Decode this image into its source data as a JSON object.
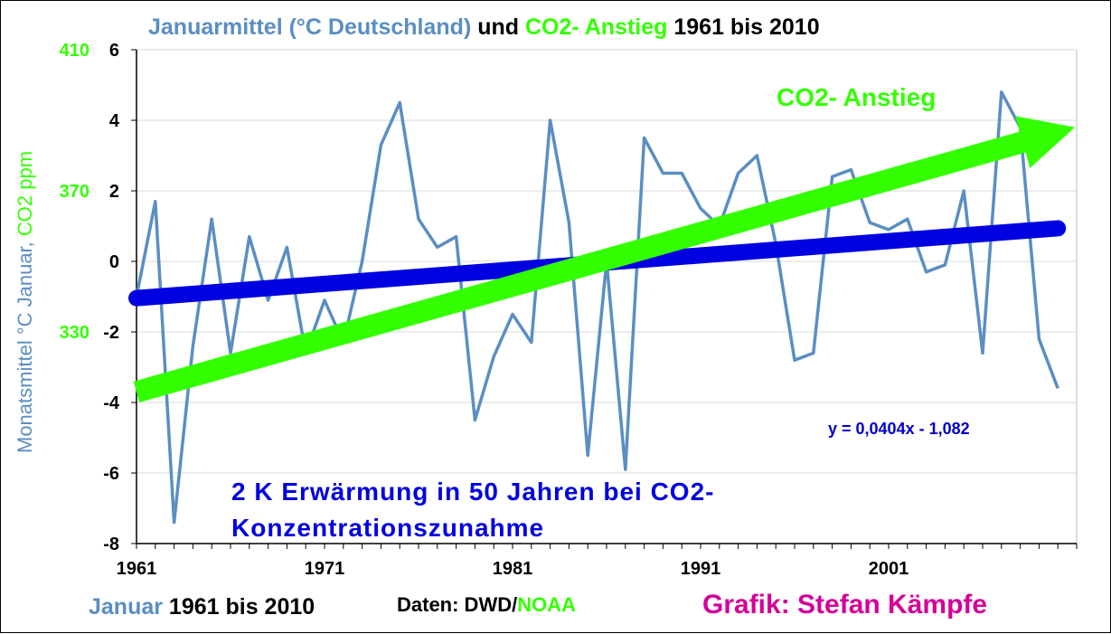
{
  "title": {
    "part1": "Januarmittel (°C Deutschland)",
    "part2": " und ",
    "part3": "CO2- Anstieg",
    "part4": " 1961 bis 2010"
  },
  "ylabel": {
    "part1": "Monatsmittel  °C Januar, ",
    "part2": "CO2 ppm"
  },
  "footer": {
    "left_a": "Januar",
    "left_b": " 1961 bis 2010",
    "data_a": "Daten: DWD/",
    "data_b": "NOAA",
    "credit": "Grafik: Stefan Kämpfe"
  },
  "annotations": {
    "co2_label": "CO2- Anstieg",
    "equation": "y = 0,0404x - 1,082",
    "text_line1": "2 K Erwärmung in 50 Jahren bei CO2-",
    "text_line2": "Konzentrationszunahme"
  },
  "colors": {
    "temperature": "#5b8ec2",
    "trend": "#0000e0",
    "co2": "#33ff00",
    "title_blue": "#5b8ec2",
    "credit": "#d4009a"
  },
  "chart_data": {
    "type": "line",
    "x_ticks": [
      "1961",
      "1971",
      "1981",
      "1991",
      "2001"
    ],
    "y_ticks": [
      "6",
      "4",
      "2",
      "0",
      "-2",
      "-4",
      "-6",
      "-8"
    ],
    "co2_ticks": [
      "410",
      "370",
      "330"
    ],
    "ylim": [
      -8,
      6
    ],
    "xlim": [
      1961,
      2011
    ],
    "grid": true,
    "series": [
      {
        "name": "Januar",
        "x": [
          1961,
          1962,
          1963,
          1964,
          1965,
          1966,
          1967,
          1968,
          1969,
          1970,
          1971,
          1972,
          1973,
          1974,
          1975,
          1976,
          1977,
          1978,
          1979,
          1980,
          1981,
          1982,
          1983,
          1984,
          1985,
          1986,
          1987,
          1988,
          1989,
          1990,
          1991,
          1992,
          1993,
          1994,
          1995,
          1996,
          1997,
          1998,
          1999,
          2000,
          2001,
          2002,
          2003,
          2004,
          2005,
          2006,
          2007,
          2008,
          2009,
          2010
        ],
        "values": [
          -1.0,
          1.7,
          -7.4,
          -2.4,
          1.2,
          -2.6,
          0.7,
          -1.1,
          0.4,
          -2.6,
          -1.1,
          -2.3,
          0.0,
          3.3,
          4.5,
          1.2,
          0.4,
          0.7,
          -4.5,
          -2.7,
          -1.5,
          -2.3,
          4.0,
          1.1,
          -5.5,
          0.0,
          -5.9,
          3.5,
          2.5,
          2.5,
          1.5,
          1.0,
          2.5,
          3.0,
          0.5,
          -2.8,
          -2.6,
          2.4,
          2.6,
          1.1,
          0.9,
          1.2,
          -0.3,
          -0.1,
          2.0,
          -2.6,
          4.8,
          3.8,
          -2.2,
          -3.6
        ]
      }
    ],
    "trend": {
      "slope": 0.0404,
      "intercept": -1.082
    },
    "co2_arrow": {
      "start": [
        1961,
        -3.7
      ],
      "end": [
        2011,
        3.8
      ]
    }
  }
}
